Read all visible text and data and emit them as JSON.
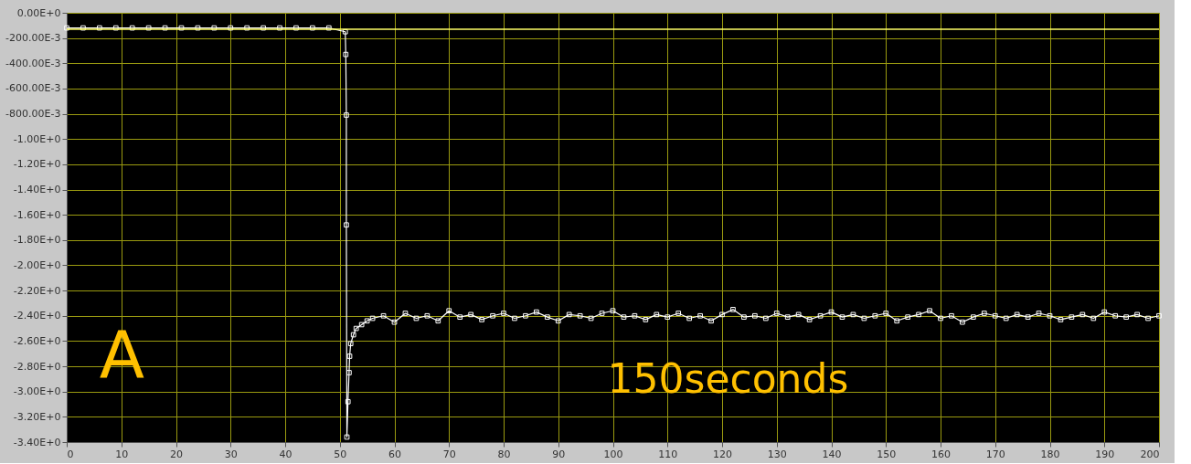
{
  "chart_data": {
    "type": "line",
    "x": [
      0,
      3,
      6,
      9,
      12,
      15,
      18,
      21,
      24,
      27,
      30,
      33,
      36,
      39,
      42,
      45,
      48,
      51,
      51.1,
      51.2,
      51.2,
      51.3,
      51.5,
      51.7,
      51.8,
      52,
      52.5,
      53,
      54,
      55,
      56,
      58,
      60,
      62,
      64,
      66,
      68,
      70,
      72,
      74,
      76,
      78,
      80,
      82,
      84,
      86,
      88,
      90,
      92,
      94,
      96,
      98,
      100,
      102,
      104,
      106,
      108,
      110,
      112,
      114,
      116,
      118,
      120,
      122,
      124,
      126,
      128,
      130,
      132,
      134,
      136,
      138,
      140,
      142,
      144,
      146,
      148,
      150,
      152,
      154,
      156,
      158,
      160,
      162,
      164,
      166,
      168,
      170,
      172,
      174,
      176,
      178,
      180,
      182,
      184,
      186,
      188,
      190,
      192,
      194,
      196,
      198,
      200
    ],
    "series": [
      {
        "color": "#ffffff",
        "values": [
          -0.12,
          -0.12,
          -0.12,
          -0.12,
          -0.12,
          -0.12,
          -0.12,
          -0.12,
          -0.12,
          -0.12,
          -0.12,
          -0.12,
          -0.12,
          -0.12,
          -0.12,
          -0.12,
          -0.12,
          -0.15,
          -0.33,
          -0.81,
          -1.68,
          -3.36,
          -3.08,
          -2.85,
          -2.72,
          -2.62,
          -2.55,
          -2.5,
          -2.47,
          -2.44,
          -2.42,
          -2.4,
          -2.45,
          -2.38,
          -2.42,
          -2.4,
          -2.44,
          -2.36,
          -2.41,
          -2.39,
          -2.43,
          -2.4,
          -2.38,
          -2.42,
          -2.4,
          -2.37,
          -2.41,
          -2.44,
          -2.39,
          -2.4,
          -2.42,
          -2.38,
          -2.36,
          -2.41,
          -2.4,
          -2.43,
          -2.39,
          -2.41,
          -2.38,
          -2.42,
          -2.4,
          -2.44,
          -2.39,
          -2.35,
          -2.41,
          -2.4,
          -2.42,
          -2.38,
          -2.41,
          -2.39,
          -2.43,
          -2.4,
          -2.37,
          -2.41,
          -2.39,
          -2.42,
          -2.4,
          -2.38,
          -2.44,
          -2.41,
          -2.39,
          -2.36,
          -2.42,
          -2.4,
          -2.45,
          -2.41,
          -2.38,
          -2.4,
          -2.42,
          -2.39,
          -2.41,
          -2.38,
          -2.4,
          -2.43,
          -2.41,
          -2.39,
          -2.42,
          -2.37,
          -2.4,
          -2.41,
          -2.39,
          -2.42,
          -2.4
        ]
      }
    ],
    "xlim": [
      0,
      200
    ],
    "xticks": [
      0,
      10,
      20,
      30,
      40,
      50,
      60,
      70,
      80,
      90,
      100,
      110,
      120,
      130,
      140,
      150,
      160,
      170,
      180,
      190,
      200
    ],
    "ylim": [
      -3.4,
      0
    ],
    "yticks": [
      {
        "value": 0,
        "label": "0.00E+0"
      },
      {
        "value": -0.2,
        "label": "-200.00E-3"
      },
      {
        "value": -0.4,
        "label": "-400.00E-3"
      },
      {
        "value": -0.6,
        "label": "-600.00E-3"
      },
      {
        "value": -0.8,
        "label": "-800.00E-3"
      },
      {
        "value": -1.0,
        "label": "-1.00E+0"
      },
      {
        "value": -1.2,
        "label": "-1.20E+0"
      },
      {
        "value": -1.4,
        "label": "-1.40E+0"
      },
      {
        "value": -1.6,
        "label": "-1.60E+0"
      },
      {
        "value": -1.8,
        "label": "-1.80E+0"
      },
      {
        "value": -2.0,
        "label": "-2.00E+0"
      },
      {
        "value": -2.2,
        "label": "-2.20E+0"
      },
      {
        "value": -2.4,
        "label": "-2.40E+0"
      },
      {
        "value": -2.6,
        "label": "-2.60E+0"
      },
      {
        "value": -2.8,
        "label": "-2.80E+0"
      },
      {
        "value": -3.0,
        "label": "-3.00E+0"
      },
      {
        "value": -3.2,
        "label": "-3.20E+0"
      },
      {
        "value": -3.4,
        "label": "-3.40E+0"
      }
    ],
    "ref_lines": [
      {
        "axis": "y",
        "value": -0.13,
        "color": "#ffff66"
      }
    ],
    "annotations": [
      "A",
      "150seconds"
    ],
    "grid": true,
    "marker": "square",
    "line_style": "solid",
    "legend": false
  }
}
